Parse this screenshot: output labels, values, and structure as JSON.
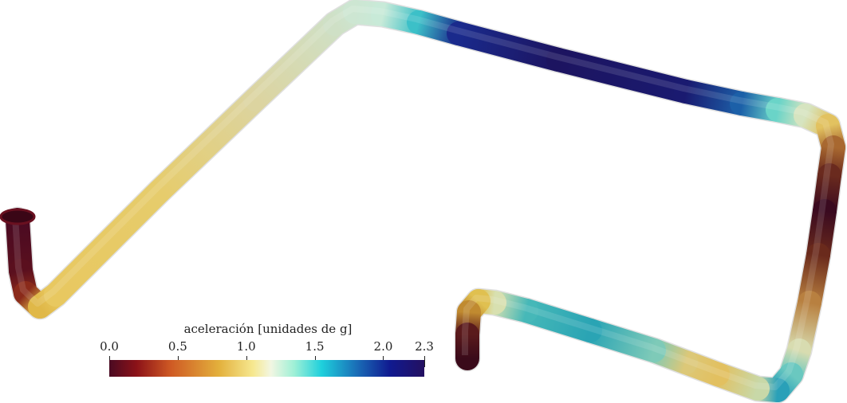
{
  "colorbar": {
    "title": "aceleración [unidades de g]",
    "range": [
      0.0,
      2.3
    ],
    "ticks": [
      {
        "value": 0.0,
        "label": "0.0"
      },
      {
        "value": 0.5,
        "label": "0.5"
      },
      {
        "value": 1.0,
        "label": "1.0"
      },
      {
        "value": 1.5,
        "label": "1.5"
      },
      {
        "value": 2.0,
        "label": "2.0"
      },
      {
        "value": 2.3,
        "label": "2.3"
      }
    ],
    "colormap": [
      {
        "value": 0.0,
        "color": "#4a0a22"
      },
      {
        "value": 0.2,
        "color": "#8c1218"
      },
      {
        "value": 0.45,
        "color": "#cf5a24"
      },
      {
        "value": 0.8,
        "color": "#e3b03c"
      },
      {
        "value": 1.05,
        "color": "#f6e890"
      },
      {
        "value": 1.18,
        "color": "#f2f6e2"
      },
      {
        "value": 1.35,
        "color": "#9ef0d6"
      },
      {
        "value": 1.55,
        "color": "#1ed0dc"
      },
      {
        "value": 1.8,
        "color": "#1a70b8"
      },
      {
        "value": 2.05,
        "color": "#101a90"
      },
      {
        "value": 2.3,
        "color": "#241060"
      }
    ]
  }
}
